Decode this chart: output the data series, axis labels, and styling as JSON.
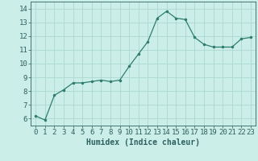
{
  "x": [
    0,
    1,
    2,
    3,
    4,
    5,
    6,
    7,
    8,
    9,
    10,
    11,
    12,
    13,
    14,
    15,
    16,
    17,
    18,
    19,
    20,
    21,
    22,
    23
  ],
  "y": [
    6.2,
    5.9,
    7.7,
    8.1,
    8.6,
    8.6,
    8.7,
    8.8,
    8.7,
    8.8,
    9.8,
    10.7,
    11.6,
    13.3,
    13.8,
    13.3,
    13.2,
    11.9,
    11.4,
    11.2,
    11.2,
    11.2,
    11.8,
    11.9
  ],
  "line_color": "#2e7d6e",
  "marker": ".",
  "marker_size": 3,
  "bg_color": "#cceee8",
  "grid_color": "#aad8d0",
  "axis_color": "#2e6060",
  "xlabel": "Humidex (Indice chaleur)",
  "xlabel_fontsize": 7,
  "tick_fontsize": 6.5,
  "ylim": [
    5.5,
    14.5
  ],
  "xlim": [
    -0.5,
    23.5
  ],
  "yticks": [
    6,
    7,
    8,
    9,
    10,
    11,
    12,
    13,
    14
  ],
  "xticks": [
    0,
    1,
    2,
    3,
    4,
    5,
    6,
    7,
    8,
    9,
    10,
    11,
    12,
    13,
    14,
    15,
    16,
    17,
    18,
    19,
    20,
    21,
    22,
    23
  ]
}
